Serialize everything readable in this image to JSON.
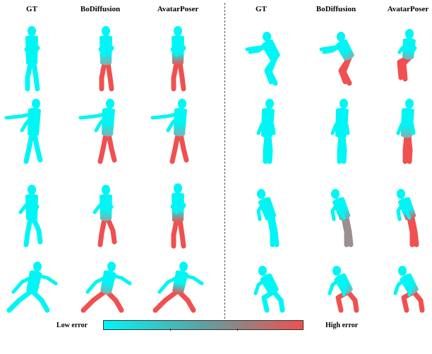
{
  "headers": {
    "left": [
      "GT",
      "BoDiffusion",
      "AvatarPoser"
    ],
    "right": [
      "GT",
      "BoDiffusion",
      "AvatarPoser"
    ]
  },
  "legend": {
    "low": "Low error",
    "high": "High error",
    "low_color": "#00f5f5",
    "high_color": "#f05050"
  },
  "grid": {
    "rows": 4,
    "columns_per_side": 3,
    "figures": [
      {
        "side": "left",
        "row": 1,
        "method": "GT",
        "pose": "standing",
        "error": "none"
      },
      {
        "side": "left",
        "row": 1,
        "method": "BoDiffusion",
        "pose": "standing",
        "error": "legs"
      },
      {
        "side": "left",
        "row": 1,
        "method": "AvatarPoser",
        "pose": "standing",
        "error": "lower-body"
      },
      {
        "side": "right",
        "row": 1,
        "method": "GT",
        "pose": "crouch-reach",
        "error": "none"
      },
      {
        "side": "right",
        "row": 1,
        "method": "BoDiffusion",
        "pose": "crouch-reach",
        "error": "legs"
      },
      {
        "side": "right",
        "row": 1,
        "method": "AvatarPoser",
        "pose": "sitting",
        "error": "legs"
      },
      {
        "side": "left",
        "row": 2,
        "method": "GT",
        "pose": "arm-out",
        "error": "none"
      },
      {
        "side": "left",
        "row": 2,
        "method": "BoDiffusion",
        "pose": "arm-out",
        "error": "legs"
      },
      {
        "side": "left",
        "row": 2,
        "method": "AvatarPoser",
        "pose": "arm-out",
        "error": "legs"
      },
      {
        "side": "right",
        "row": 2,
        "method": "GT",
        "pose": "standing-side",
        "error": "none"
      },
      {
        "side": "right",
        "row": 2,
        "method": "BoDiffusion",
        "pose": "standing-side",
        "error": "none"
      },
      {
        "side": "right",
        "row": 2,
        "method": "AvatarPoser",
        "pose": "standing-side",
        "error": "legs"
      },
      {
        "side": "left",
        "row": 3,
        "method": "GT",
        "pose": "step",
        "error": "none"
      },
      {
        "side": "left",
        "row": 3,
        "method": "BoDiffusion",
        "pose": "step",
        "error": "legs"
      },
      {
        "side": "left",
        "row": 3,
        "method": "AvatarPoser",
        "pose": "standing",
        "error": "lower-body"
      },
      {
        "side": "right",
        "row": 3,
        "method": "GT",
        "pose": "bend",
        "error": "none"
      },
      {
        "side": "right",
        "row": 3,
        "method": "BoDiffusion",
        "pose": "bend",
        "error": "mid"
      },
      {
        "side": "right",
        "row": 3,
        "method": "AvatarPoser",
        "pose": "bend",
        "error": "lower-body"
      },
      {
        "side": "left",
        "row": 4,
        "method": "GT",
        "pose": "lunge",
        "error": "none"
      },
      {
        "side": "left",
        "row": 4,
        "method": "BoDiffusion",
        "pose": "lunge",
        "error": "legs"
      },
      {
        "side": "left",
        "row": 4,
        "method": "AvatarPoser",
        "pose": "lunge",
        "error": "lower-body"
      },
      {
        "side": "right",
        "row": 4,
        "method": "GT",
        "pose": "deep-crouch",
        "error": "none"
      },
      {
        "side": "right",
        "row": 4,
        "method": "BoDiffusion",
        "pose": "deep-crouch",
        "error": "legs"
      },
      {
        "side": "right",
        "row": 4,
        "method": "AvatarPoser",
        "pose": "deep-crouch",
        "error": "legs"
      }
    ]
  }
}
